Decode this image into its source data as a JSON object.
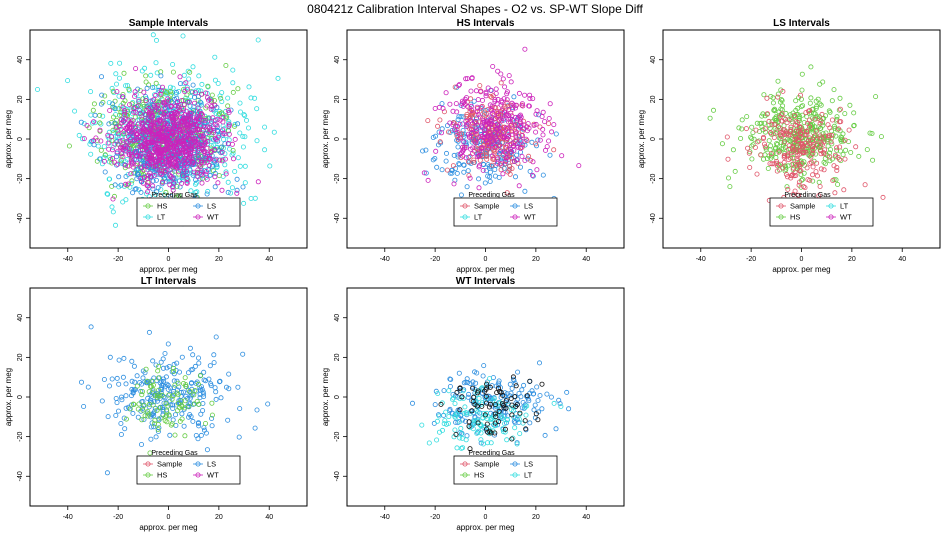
{
  "figure_title": "080421z   Calibration Interval Shapes - O2 vs. SP-WT Slope Diff",
  "colors": {
    "Sample": "#e0566a",
    "HS": "#66cc44",
    "LS": "#2e8fe0",
    "LT": "#33dde0",
    "WT": "#cc22bb",
    "Extra": "#111111"
  },
  "chart_data": [
    {
      "type": "scatter",
      "title": "Sample Intervals",
      "xlabel": "approx. per meg",
      "ylabel": "approx. per meg",
      "xlim": [
        -55,
        55
      ],
      "ylim": [
        -55,
        55
      ],
      "xticks": [
        -40,
        -20,
        0,
        20,
        40
      ],
      "yticks": [
        -40,
        -20,
        0,
        20,
        40
      ],
      "legend": {
        "title": "Preceding Gas",
        "position": "bottom-center",
        "entries": [
          "HS",
          "LS",
          "LT",
          "WT"
        ]
      },
      "series": [
        {
          "name": "LT",
          "color_key": "LT",
          "n": 560,
          "center": [
            0,
            2
          ],
          "sd": [
            15,
            16
          ],
          "seed": 11
        },
        {
          "name": "HS",
          "color_key": "HS",
          "n": 320,
          "center": [
            -2,
            3
          ],
          "sd": [
            12,
            13
          ],
          "seed": 12
        },
        {
          "name": "LS",
          "color_key": "LS",
          "n": 460,
          "center": [
            -1,
            -3
          ],
          "sd": [
            11,
            13
          ],
          "seed": 13
        },
        {
          "name": "WT",
          "color_key": "WT",
          "n": 760,
          "center": [
            0,
            -1
          ],
          "sd": [
            11,
            11
          ],
          "seed": 14
        }
      ]
    },
    {
      "type": "scatter",
      "title": "HS Intervals",
      "xlabel": "approx. per meg",
      "ylabel": "approx. per meg",
      "xlim": [
        -55,
        55
      ],
      "ylim": [
        -55,
        55
      ],
      "xticks": [
        -40,
        -20,
        0,
        20,
        40
      ],
      "yticks": [
        -40,
        -20,
        0,
        20,
        40
      ],
      "legend": {
        "title": "Preceding Gas",
        "position": "bottom-center",
        "entries": [
          "Sample",
          "LS",
          "LT",
          "WT"
        ]
      },
      "series": [
        {
          "name": "LS",
          "color_key": "LS",
          "n": 230,
          "center": [
            0,
            -3
          ],
          "sd": [
            11,
            11
          ],
          "seed": 21
        },
        {
          "name": "Sample",
          "color_key": "Sample",
          "n": 230,
          "center": [
            2,
            3
          ],
          "sd": [
            8,
            9
          ],
          "seed": 22
        },
        {
          "name": "WT",
          "color_key": "WT",
          "n": 280,
          "center": [
            3,
            6
          ],
          "sd": [
            10,
            12
          ],
          "seed": 23
        }
      ]
    },
    {
      "type": "scatter",
      "title": "LS Intervals",
      "xlabel": "approx. per meg",
      "ylabel": "approx. per meg",
      "xlim": [
        -55,
        55
      ],
      "ylim": [
        -55,
        55
      ],
      "xticks": [
        -40,
        -20,
        0,
        20,
        40
      ],
      "yticks": [
        -40,
        -20,
        0,
        20,
        40
      ],
      "legend": {
        "title": "Preceding Gas",
        "position": "bottom-center",
        "entries": [
          "Sample",
          "LT",
          "HS",
          "WT"
        ]
      },
      "series": [
        {
          "name": "HS",
          "color_key": "HS",
          "n": 380,
          "center": [
            0,
            2
          ],
          "sd": [
            11,
            11
          ],
          "seed": 31
        },
        {
          "name": "Sample",
          "color_key": "Sample",
          "n": 230,
          "center": [
            -1,
            -4
          ],
          "sd": [
            9,
            11
          ],
          "seed": 32
        }
      ]
    },
    {
      "type": "scatter",
      "title": "LT Intervals",
      "xlabel": "approx. per meg",
      "ylabel": "approx. per meg",
      "xlim": [
        -55,
        55
      ],
      "ylim": [
        -55,
        55
      ],
      "xticks": [
        -40,
        -20,
        0,
        20,
        40
      ],
      "yticks": [
        -40,
        -20,
        0,
        20,
        40
      ],
      "legend": {
        "title": "Preceding Gas",
        "position": "bottom-center",
        "entries": [
          "Sample",
          "LS",
          "HS",
          "WT"
        ]
      },
      "series": [
        {
          "name": "LS",
          "color_key": "LS",
          "n": 260,
          "center": [
            0,
            2
          ],
          "sd": [
            12,
            12
          ],
          "seed": 41
        },
        {
          "name": "HS",
          "color_key": "HS",
          "n": 90,
          "center": [
            -2,
            -2
          ],
          "sd": [
            8,
            8
          ],
          "seed": 42
        }
      ]
    },
    {
      "type": "scatter",
      "title": "WT Intervals",
      "xlabel": "approx. per meg",
      "ylabel": "approx. per meg",
      "xlim": [
        -55,
        55
      ],
      "ylim": [
        -55,
        55
      ],
      "xticks": [
        -40,
        -20,
        0,
        20,
        40
      ],
      "yticks": [
        -40,
        -20,
        0,
        20,
        40
      ],
      "legend": {
        "title": "Preceding Gas",
        "position": "bottom-center",
        "entries": [
          "Sample",
          "LS",
          "HS",
          "LT"
        ]
      },
      "series": [
        {
          "name": "LS",
          "color_key": "LS",
          "n": 190,
          "center": [
            1,
            -4
          ],
          "sd": [
            11,
            8
          ],
          "seed": 51
        },
        {
          "name": "LT",
          "color_key": "LT",
          "n": 130,
          "center": [
            0,
            -10
          ],
          "sd": [
            9,
            8
          ],
          "seed": 52
        },
        {
          "name": "Sample",
          "color_key": "Extra",
          "n": 70,
          "center": [
            2,
            -6
          ],
          "sd": [
            9,
            7
          ],
          "seed": 53
        }
      ]
    }
  ]
}
